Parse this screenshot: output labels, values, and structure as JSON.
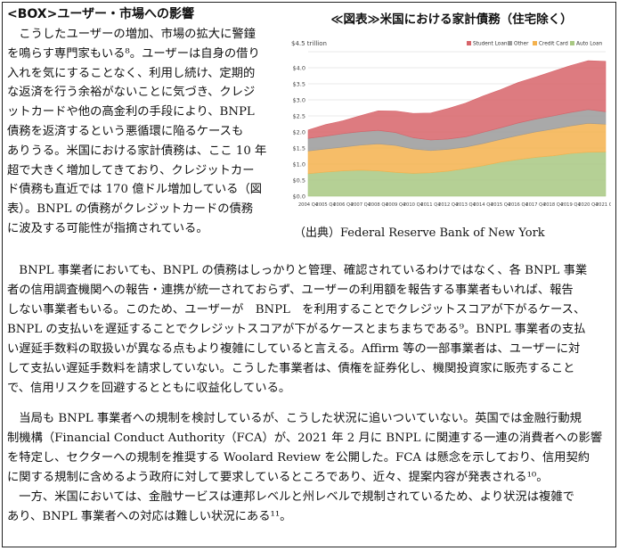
{
  "heading": "<BOX>ユーザー・市場への影響",
  "left_lines": [
    "　こうしたユーザーの増加、市場の拡大に警鐘",
    "を鳴らす専門家もいる⁸。ユーザーは自身の借り",
    "入れを気にすることなく、利用し続け、定期的",
    "な返済を行う余裕がないことに気づき、クレジ",
    "ットカードや他の高金利の手段により、BNPL",
    "債務を返済するという悪循環に陥るケースも",
    "ありうる。米国における家計債務は、ここ 10 年",
    "超で大きく増加してきており、クレジットカー",
    "ド債務も直近では 170 億ドル増加している（図",
    "表）。BNPL の債務がクレジットカードの債務",
    "に波及する可能性が指摘されている。"
  ],
  "para1_lines": [
    "　BNPL 事業者においても、BNPL の債務はしっかりと管理、確認されているわけではなく、各 BNPL 事業",
    "者の信用調査機関への報告・連携が統一されておらず、ユーザーの利用額を報告する事業者もいれば、報告",
    "しない事業者もいる。このため、ユーザーが　BNPL　を利用することでクレジットスコアが下がるケース、",
    "BNPL の支払いを遅延することでクレジットスコアが下がるケースとまちまちである⁹。BNPL 事業者の支払",
    "い遅延手数料の取扱いが異なる点もより複雑にしていると言える。Affirm 等の一部事業者は、ユーザーに対",
    "して支払い遅延手数料を請求していない。こうした事業者は、債権を証券化し、機関投資家に販売すること",
    "で、信用リスクを回避するとともに収益化している。"
  ],
  "para2_lines": [
    "　当局も BNPL 事業者への規制を検討しているが、こうした状況に追いついていない。英国では金融行動規",
    "制機構（Financial Conduct Authority（FCA）が、2021 年 2 月に BNPL に関連する一連の消費者への影響",
    "を特定し、セクターへの規制を推奨する Woolard Review を公開した。FCA は懸念を示しており、信用契約",
    "に関する規制に含めるよう政府に対して要求しているところであり、近々、提案内容が発表される¹⁰。",
    "　一方、米国においては、金融サービスは連邦レベルと州レベルで規制されているため、より状況は複雑で",
    "あり、BNPL 事業者への対応は難しい状況にある¹¹。"
  ],
  "chart_title": "≪図表≫米国における家計債務（住宅除く）",
  "caption": "（出典）Federal Reserve Bank of New York",
  "chart_data": {
    "type": "area",
    "stacked": true,
    "unit_label": "$4.5 trillion",
    "ylim": [
      0,
      4.5
    ],
    "yticks": [
      "$0.0",
      "$0.5",
      "$1.0",
      "$1.5",
      "$2.0",
      "$2.5",
      "$3.0",
      "$3.5",
      "$4.0",
      "$4.5"
    ],
    "xtick_labels": [
      "2004 Q4",
      "2005 Q4",
      "2006 Q4",
      "2007 Q4",
      "2008 Q4",
      "2009 Q4",
      "2010 Q4",
      "2011 Q4",
      "2012 Q4",
      "2013 Q4",
      "2014 Q4",
      "2015 Q4",
      "2016 Q4",
      "2017 Q4",
      "2018 Q4",
      "2019 Q4",
      "2020 Q4",
      "2021 Q1"
    ],
    "x": [
      "2004",
      "2005",
      "2006",
      "2007",
      "2008",
      "2009",
      "2010",
      "2011",
      "2012",
      "2013",
      "2014",
      "2015",
      "2016",
      "2017",
      "2018",
      "2019",
      "2020",
      "2021"
    ],
    "series": [
      {
        "name": "Auto Loan",
        "color": "#a8c882",
        "values": [
          0.7,
          0.75,
          0.79,
          0.81,
          0.79,
          0.74,
          0.71,
          0.73,
          0.78,
          0.86,
          0.95,
          1.06,
          1.14,
          1.21,
          1.26,
          1.33,
          1.37,
          1.38
        ]
      },
      {
        "name": "Credit Card",
        "color": "#f4b24e",
        "values": [
          0.71,
          0.72,
          0.74,
          0.78,
          0.84,
          0.84,
          0.76,
          0.69,
          0.68,
          0.67,
          0.69,
          0.71,
          0.75,
          0.79,
          0.83,
          0.86,
          0.9,
          0.86
        ]
      },
      {
        "name": "Other",
        "color": "#9a9a9a",
        "values": [
          0.39,
          0.4,
          0.42,
          0.42,
          0.42,
          0.4,
          0.35,
          0.33,
          0.32,
          0.32,
          0.35,
          0.36,
          0.39,
          0.4,
          0.41,
          0.42,
          0.43,
          0.39
        ]
      },
      {
        "name": "Student Loan",
        "color": "#d7646a",
        "values": [
          0.26,
          0.36,
          0.4,
          0.5,
          0.61,
          0.67,
          0.76,
          0.84,
          0.95,
          1.05,
          1.13,
          1.19,
          1.26,
          1.31,
          1.39,
          1.46,
          1.52,
          1.57
        ]
      }
    ],
    "legend_position": "top-right",
    "grid": true
  }
}
